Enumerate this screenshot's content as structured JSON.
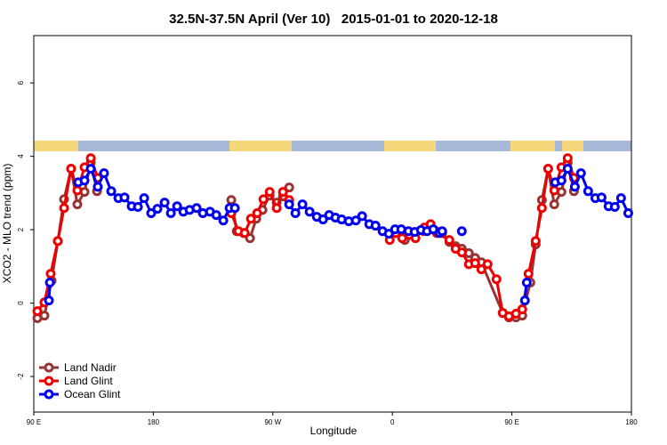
{
  "chart_data": {
    "type": "line",
    "title": "32.5N-37.5N April (Ver 10)   2015-01-01 to 2020-12-18",
    "x_label": "Longitude",
    "y_label": "XCO2 - MLO trend (ppm)",
    "xlim": [
      90,
      540
    ],
    "ylim": [
      -2.97,
      7.29
    ],
    "xticks": [
      {
        "value": 90,
        "label": "90 E"
      },
      {
        "value": 180,
        "label": "180"
      },
      {
        "value": 270,
        "label": "90 W"
      },
      {
        "value": 360,
        "label": "0"
      },
      {
        "value": 450,
        "label": "90 E"
      },
      {
        "value": 540,
        "label": "180"
      }
    ],
    "yticks": [
      -2,
      0,
      2,
      4,
      6
    ],
    "legend": "bottom-left",
    "series": [
      {
        "name": "Land Nadir",
        "color": "#993333",
        "x": [
          92.7,
          98,
          103.4,
          108.1,
          112.8,
          118.1,
          122.8,
          128.2,
          132.9,
          137.6,
          null,
          238.7,
          242.8,
          248.1,
          252.8,
          257.5,
          262.2,
          267.6,
          272.9,
          277.6,
          282.3,
          null,
          369.4,
          383.5,
          388.2,
          392.8,
          397.5,
          402.9,
          407.6,
          412.3,
          417.6,
          422.3,
          427.0,
          443.1,
          447.8,
          453.1,
          457.8,
          463.9,
          467.9,
          472.6,
          477.3,
          481.9,
          487.3,
          492,
          496.7
        ],
        "values": [
          -0.41,
          -0.34,
          0.61,
          1.69,
          2.83,
          3.66,
          2.69,
          3.03,
          3.83,
          3.05,
          null,
          2.81,
          1.96,
          1.91,
          1.77,
          2.3,
          2.54,
          2.93,
          2.74,
          2.91,
          3.15,
          null,
          1.72,
          1.96,
          2.03,
          1.96,
          1.91,
          1.67,
          1.55,
          1.48,
          1.36,
          1.23,
          1.11,
          -0.27,
          -0.39,
          -0.39,
          -0.34,
          0.56,
          1.6,
          2.81,
          3.66,
          2.69,
          3.03,
          3.83,
          3.05
        ]
      },
      {
        "name": "Land Glint",
        "color": "#ee0000",
        "x": [
          92.7,
          98,
          102.7,
          108.1,
          112.8,
          118.1,
          122.8,
          128.2,
          132.9,
          138.2,
          null,
          238.7,
          244.1,
          248.8,
          253.5,
          258.2,
          262.9,
          267.6,
          272.9,
          277.6,
          282.3,
          null,
          358,
          362.7,
          367.4,
          372.7,
          377.4,
          384.1,
          388.8,
          393.5,
          402.9,
          407.6,
          412.3,
          417.6,
          422.3,
          427,
          431.7,
          438.4,
          443.1,
          447.8,
          453.1,
          457.8,
          462.5,
          467.9,
          472.6,
          477.3,
          481.9,
          487.3,
          492,
          496.7
        ],
        "values": [
          -0.22,
          0.02,
          0.8,
          1.69,
          2.59,
          3.66,
          3.07,
          3.7,
          3.95,
          3.41,
          null,
          2.45,
          1.96,
          1.91,
          2.3,
          2.45,
          2.83,
          3.03,
          2.59,
          3.03,
          2.81,
          null,
          1.72,
          1.91,
          1.77,
          1.86,
          1.77,
          2.06,
          2.15,
          1.91,
          1.72,
          1.48,
          1.38,
          1.06,
          1.09,
          0.92,
          1.06,
          0.65,
          -0.27,
          -0.36,
          -0.29,
          -0.17,
          0.8,
          1.69,
          2.59,
          3.66,
          3.07,
          3.7,
          3.95,
          3.41
        ]
      },
      {
        "name": "Ocean Glint",
        "color": "#0000ee",
        "x": [
          101.4,
          102.1,
          null,
          123.5,
          128.2,
          132.9,
          138.2,
          142.9,
          148.3,
          153.7,
          158.3,
          163.7,
          168.4,
          173.1,
          178.4,
          183.1,
          188.5,
          193.2,
          197.9,
          202.6,
          207.3,
          212.6,
          217.3,
          222.7,
          227.4,
          232.7,
          237.4,
          241.4,
          null,
          282.3,
          287,
          292.3,
          297.7,
          303.1,
          307.8,
          312.4,
          317.1,
          321.8,
          327.2,
          332.5,
          337.2,
          342.6,
          347.3,
          352.6,
          357.3,
          362,
          366.7,
          372.1,
          376.8,
          381.5,
          386.1,
          390.8,
          395.5,
          397.5,
          null,
          412.3,
          null,
          459.8,
          461.2,
          null,
          482.6,
          487.3,
          492,
          497.4,
          502,
          507.4,
          512.8,
          517.5,
          522.8,
          527.5,
          532.2,
          537.6
        ],
        "values": [
          0.07,
          0.56,
          null,
          3.29,
          3.34,
          3.66,
          3.17,
          3.54,
          3.05,
          2.86,
          2.88,
          2.64,
          2.62,
          2.86,
          2.45,
          2.57,
          2.74,
          2.45,
          2.64,
          2.49,
          2.54,
          2.59,
          2.45,
          2.49,
          2.4,
          2.25,
          2.59,
          2.59,
          null,
          2.69,
          2.45,
          2.69,
          2.49,
          2.35,
          2.28,
          2.4,
          2.33,
          2.28,
          2.23,
          2.25,
          2.37,
          2.15,
          2.11,
          1.96,
          1.89,
          2.01,
          2.01,
          1.96,
          1.94,
          1.99,
          1.96,
          2.01,
          1.91,
          1.96,
          null,
          1.96,
          null,
          0.07,
          0.56,
          null,
          3.29,
          3.34,
          3.66,
          3.17,
          3.54,
          3.05,
          2.86,
          2.88,
          2.64,
          2.62,
          2.86,
          2.45
        ]
      }
    ]
  }
}
